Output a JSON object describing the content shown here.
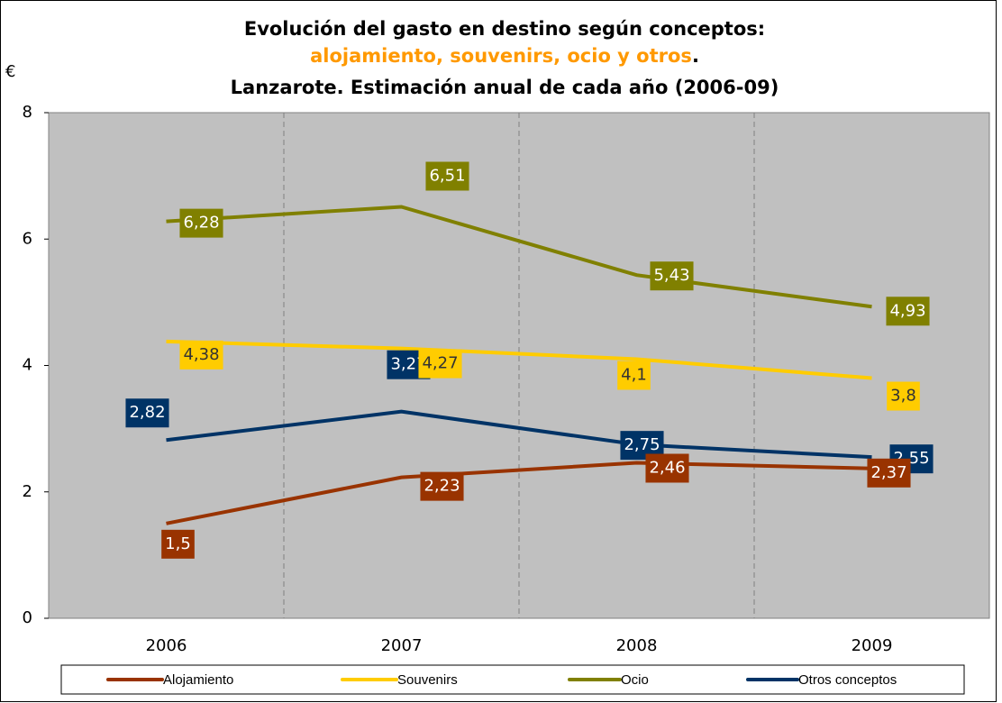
{
  "chart_data": {
    "type": "line",
    "title": {
      "line1": "Evolución del gasto en destino según conceptos:",
      "line2": "alojamiento, souvenirs, ocio y otros",
      "line2_end": ".",
      "line3": "Lanzarote. Estimación anual de cada año (2006-09)"
    },
    "y_label": "€",
    "categories": [
      "2006",
      "2007",
      "2008",
      "2009"
    ],
    "ylim": [
      0,
      8
    ],
    "yticks": [
      0,
      2,
      4,
      6,
      8
    ],
    "series": [
      {
        "name": "Alojamiento",
        "color": "#993300",
        "values": [
          1.5,
          2.23,
          2.46,
          2.37
        ],
        "value_labels": [
          "1,5",
          "2,23",
          "2,46",
          "2,37"
        ]
      },
      {
        "name": "Souvenirs",
        "color": "#ffcc00",
        "values": [
          4.38,
          4.27,
          4.1,
          3.8
        ],
        "value_labels": [
          "4,38",
          "4,27",
          "4,1",
          "3,8"
        ]
      },
      {
        "name": "Ocio",
        "color": "#808000",
        "values": [
          6.28,
          6.51,
          5.43,
          4.93
        ],
        "value_labels": [
          "6,28",
          "6,51",
          "5,43",
          "4,93"
        ]
      },
      {
        "name": "Otros conceptos",
        "color": "#003366",
        "values": [
          2.82,
          3.27,
          2.75,
          2.55
        ],
        "value_labels": [
          "2,82",
          "3,27",
          "2,75",
          "2,55"
        ]
      }
    ]
  }
}
